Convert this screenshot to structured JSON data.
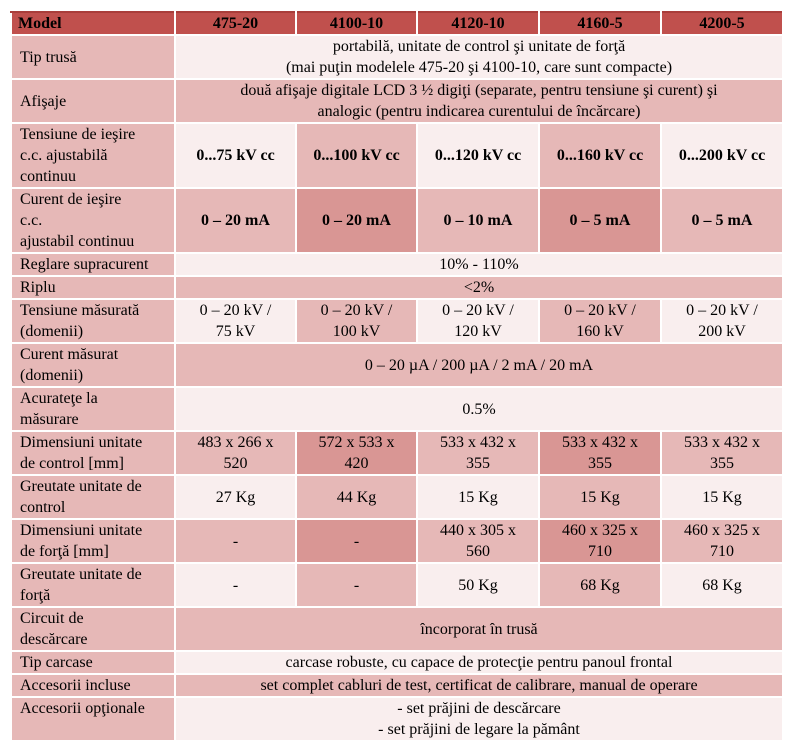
{
  "header": {
    "label": "Model",
    "models": [
      "475-20",
      "4100-10",
      "4120-10",
      "4160-5",
      "4200-5"
    ]
  },
  "rows": {
    "tip_trusa": {
      "label": "Tip trusă",
      "line1": "portabilă, unitate de control şi unitate de forţă",
      "line2": "(mai puţin modelele 475-20 şi 4100-10, care sunt compacte)"
    },
    "afisaje": {
      "label": "Afişaje",
      "line1": "două afişaje digitale LCD 3 ½ digiţi (separate, pentru tensiune şi curent) şi",
      "line2": "analogic (pentru indicarea curentului de încărcare)"
    },
    "tensiune_iesire": {
      "label_lines": [
        "Tensiune de ieşire",
        "c.c. ajustabilă",
        "continuu"
      ],
      "values": [
        "0...75 kV cc",
        "0...100 kV cc",
        "0...120 kV cc",
        "0...160 kV cc",
        "0...200 kV cc"
      ]
    },
    "curent_iesire": {
      "label_lines": [
        "Curent de ieşire",
        "c.c.",
        "ajustabil continuu"
      ],
      "values": [
        "0 – 20 mA",
        "0 – 20 mA",
        "0 – 10 mA",
        "0 – 5 mA",
        "0 – 5 mA"
      ]
    },
    "reglare": {
      "label": "Reglare supracurent",
      "value": "10% - 110%"
    },
    "riplu": {
      "label": "Riplu",
      "value": "<2%"
    },
    "tensiune_masurata": {
      "label_lines": [
        "Tensiune măsurată",
        "(domenii)"
      ],
      "values": [
        [
          "0 – 20 kV /",
          "75 kV"
        ],
        [
          "0 – 20 kV /",
          "100 kV"
        ],
        [
          "0 – 20 kV /",
          "120 kV"
        ],
        [
          "0 – 20 kV /",
          "160 kV"
        ],
        [
          "0 – 20 kV /",
          "200 kV"
        ]
      ]
    },
    "curent_masurat": {
      "label_lines": [
        "Curent măsurat",
        "(domenii)"
      ],
      "value": "0 – 20 µA / 200 µA / 2 mA / 20 mA"
    },
    "acuratete": {
      "label_lines": [
        "Acurateţe la",
        "măsurare"
      ],
      "value": "0.5%"
    },
    "dim_control": {
      "label_lines": [
        "Dimensiuni unitate",
        "de control [mm]"
      ],
      "values": [
        [
          "483 x 266 x",
          "520"
        ],
        [
          "572 x 533 x",
          "420"
        ],
        [
          "533 x 432 x",
          "355"
        ],
        [
          "533 x 432 x",
          "355"
        ],
        [
          "533 x 432 x",
          "355"
        ]
      ]
    },
    "greutate_control": {
      "label_lines": [
        "Greutate unitate de",
        "control"
      ],
      "values": [
        "27 Kg",
        "44 Kg",
        "15 Kg",
        "15 Kg",
        "15 Kg"
      ]
    },
    "dim_forta": {
      "label_lines": [
        "Dimensiuni unitate",
        "de forţă [mm]"
      ],
      "values": [
        [
          "-",
          ""
        ],
        [
          "-",
          ""
        ],
        [
          "440 x 305 x",
          "560"
        ],
        [
          "460 x 325 x",
          "710"
        ],
        [
          "460 x 325 x",
          "710"
        ]
      ]
    },
    "greutate_forta": {
      "label_lines": [
        "Greutate unitate de",
        "forţă"
      ],
      "values": [
        "-",
        "-",
        "50 Kg",
        "68 Kg",
        "68 Kg"
      ]
    },
    "circuit": {
      "label_lines": [
        "Circuit de",
        "descărcare"
      ],
      "value": "încorporat în trusă"
    },
    "tip_carcase": {
      "label": "Tip carcase",
      "value": "carcase robuste, cu capace de protecţie pentru panoul frontal"
    },
    "accesorii_incluse": {
      "label": "Accesorii incluse",
      "value": "set complet cabluri de test, certificat de calibrare, manual de operare"
    },
    "accesorii_optionale": {
      "label": "Accesorii opţionale",
      "line1": "- set prăjini de descărcare",
      "line2": "- set prăjini de legare la pământ"
    }
  },
  "colors": {
    "header": "#c0504d",
    "label_cell": "#e6b8b7",
    "light_cell": "#f9eeee",
    "dark_cell": "#d99694"
  }
}
